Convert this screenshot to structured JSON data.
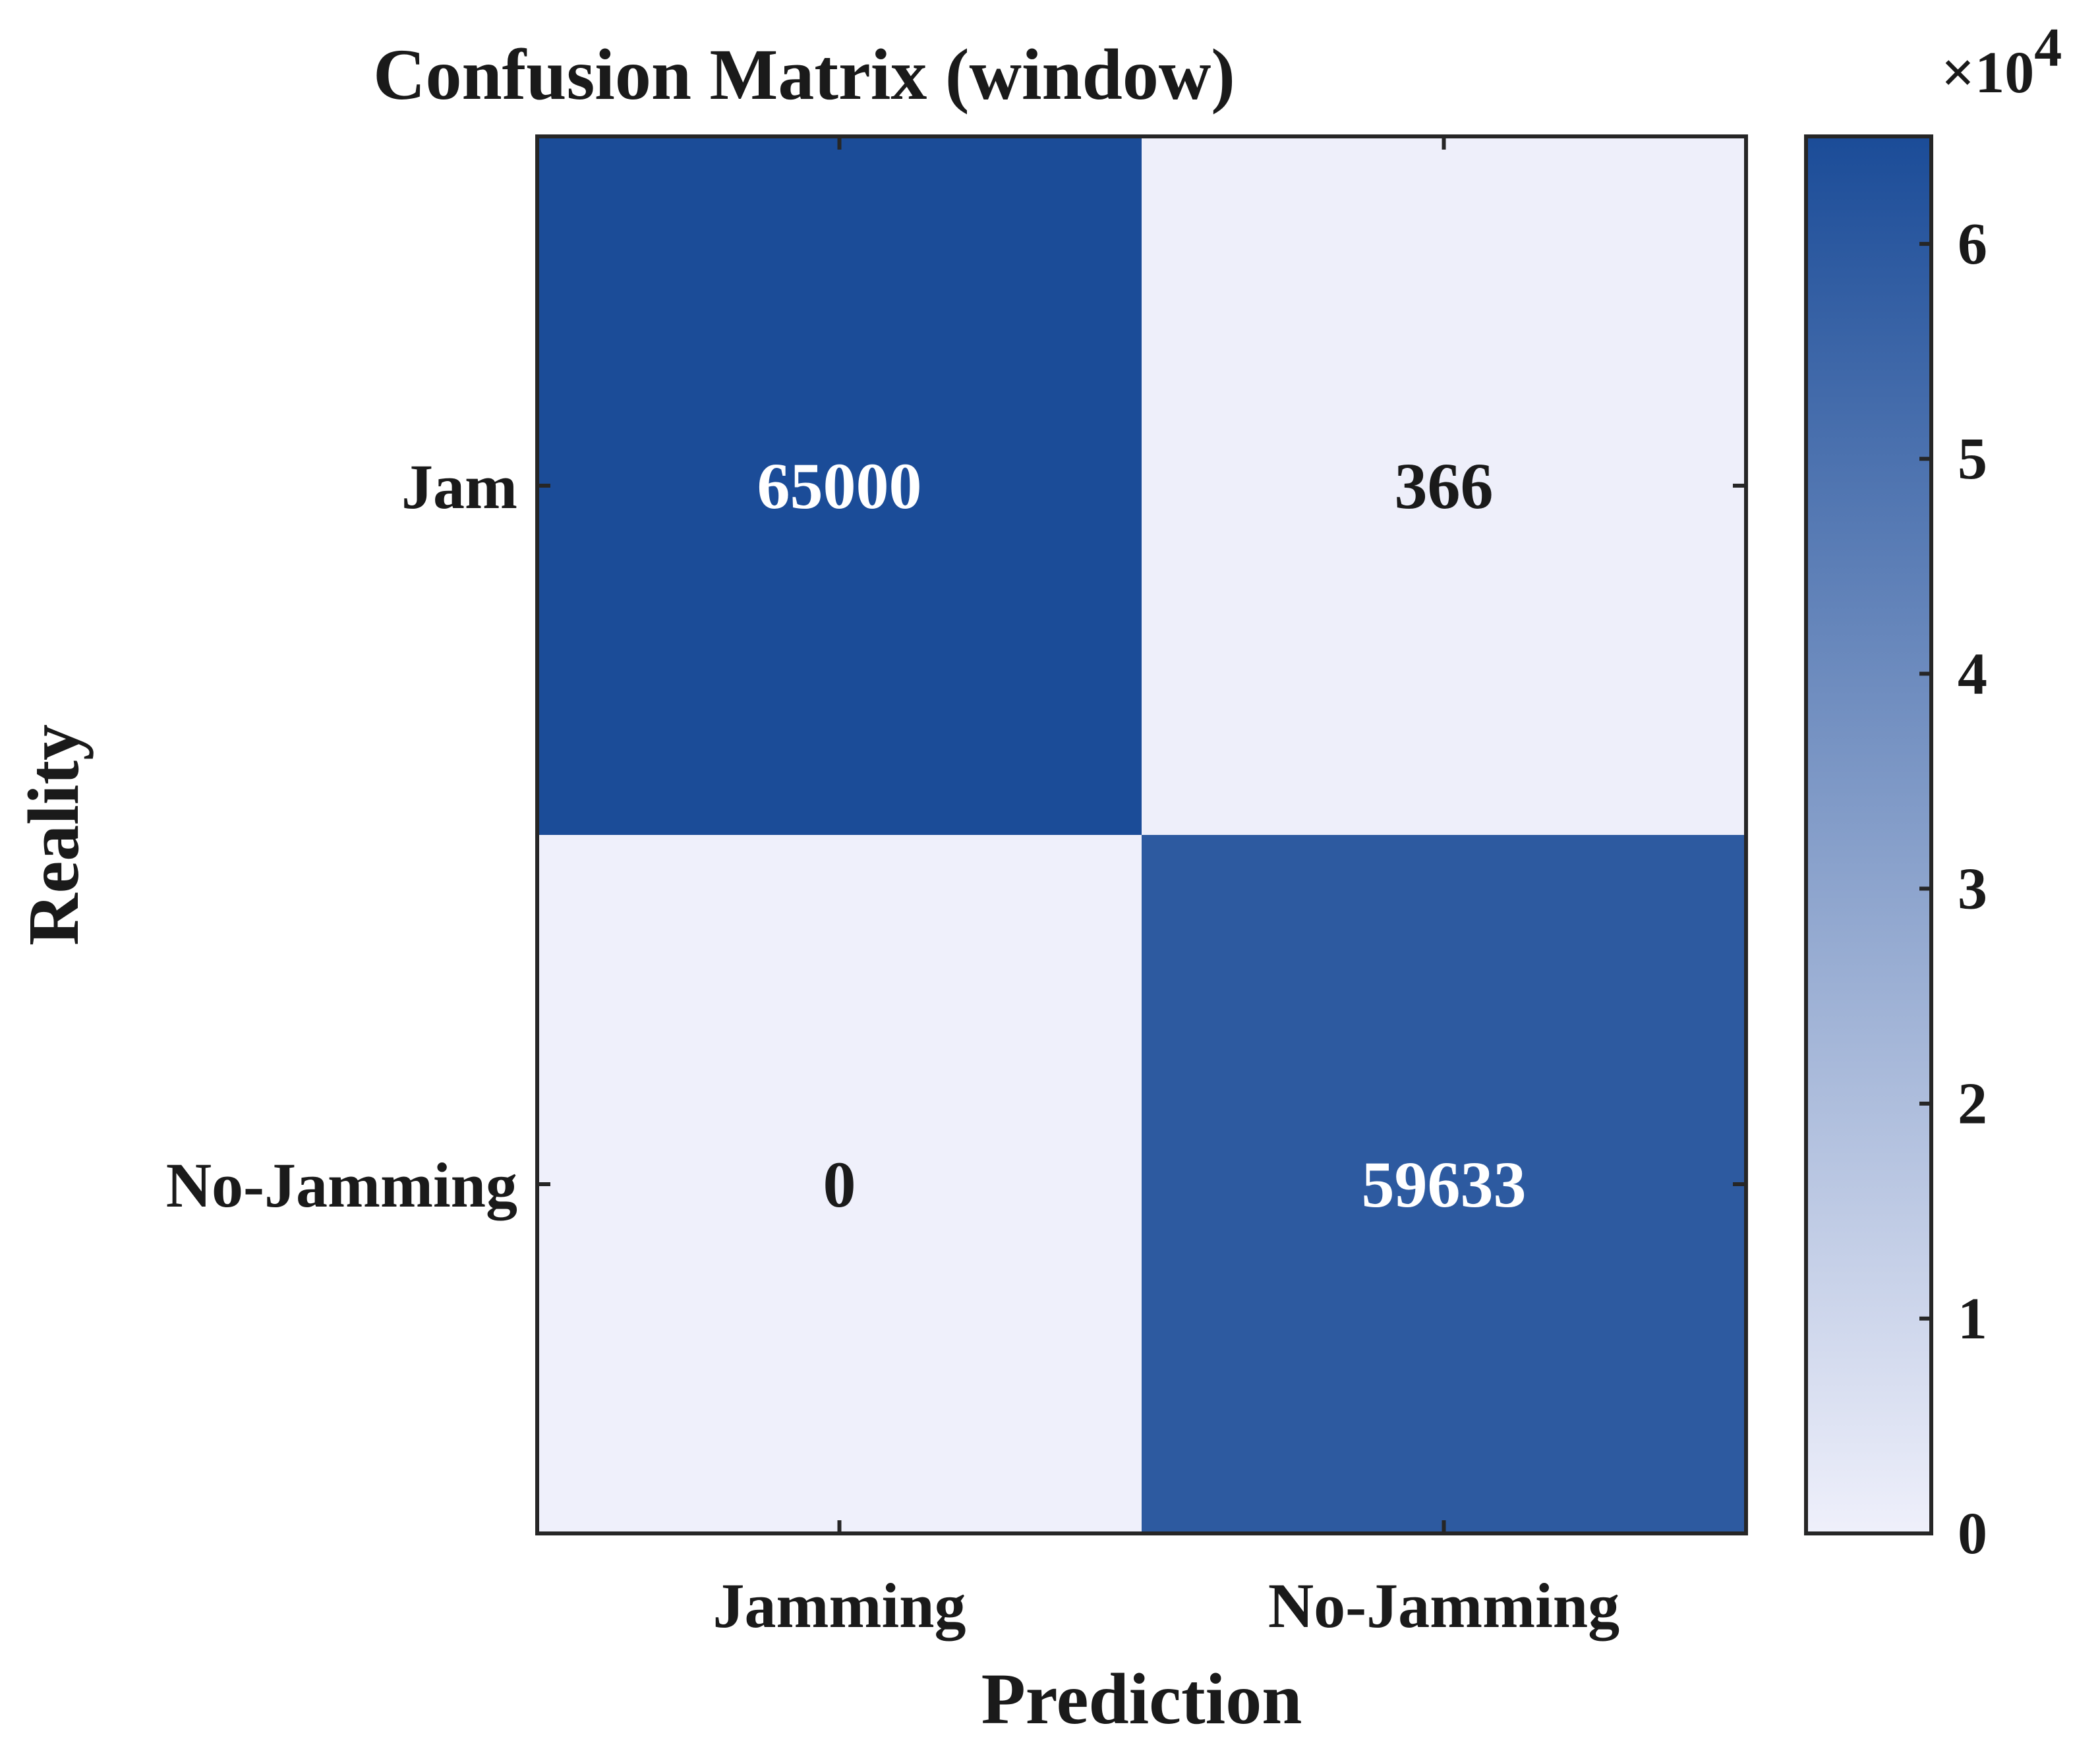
{
  "chart_data": {
    "type": "heatmap",
    "title": "Confusion Matrix (window)",
    "xlabel": "Prediction",
    "ylabel": "Reality",
    "x_categories": [
      "Jamming",
      "No-Jamming"
    ],
    "y_categories": [
      "Jam",
      "No-Jamming"
    ],
    "values": [
      [
        65000,
        366
      ],
      [
        0,
        59633
      ]
    ],
    "colorbar": {
      "min": 0,
      "max": 65000,
      "ticks": [
        0,
        1,
        2,
        3,
        4,
        5,
        6
      ],
      "tick_labels": [
        "0",
        "1",
        "2",
        "3",
        "4",
        "5",
        "6"
      ],
      "multiplier_base": "×10",
      "multiplier_exponent": "4",
      "scale": 10000,
      "color_low": "#eff0fb",
      "color_high": "#1b4c98"
    },
    "grid": false
  }
}
